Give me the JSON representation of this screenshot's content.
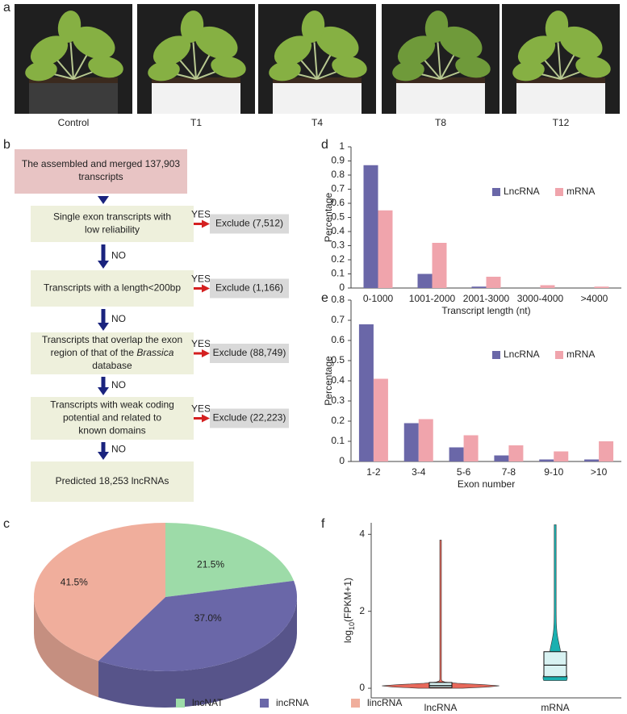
{
  "panel_labels": [
    "a",
    "b",
    "c",
    "d",
    "e",
    "f"
  ],
  "photos": {
    "labels": [
      "Control",
      "T1",
      "T4",
      "T8",
      "T12"
    ]
  },
  "flowchart": {
    "start": {
      "lines": [
        [
          "The assembled and merged 137,903"
        ],
        [
          "transcripts"
        ]
      ]
    },
    "steps": [
      {
        "lines": [
          [
            "Single exon transcripts with"
          ],
          [
            "low reliability"
          ]
        ],
        "exclude": "Exclude (7,512)"
      },
      {
        "lines": [
          [
            "Transcripts with a length<200bp"
          ]
        ],
        "exclude": "Exclude (1,166)"
      },
      {
        "lines": [
          [
            "Transcripts that overlap the exon"
          ],
          [
            "region of that of the ",
            {
              "text": "Brassica",
              "italic": true
            }
          ],
          [
            "database"
          ]
        ],
        "exclude": "Exclude (88,749)"
      },
      {
        "lines": [
          [
            "Transcripts with weak coding"
          ],
          [
            "potential and related to"
          ],
          [
            "known domains"
          ]
        ],
        "exclude": "Exclude (22,223)"
      }
    ],
    "yes": "YES",
    "no": "NO",
    "end": {
      "lines": [
        [
          "Predicted 18,253 lncRNAs"
        ]
      ]
    }
  },
  "chart_data": [
    {
      "type": "pie",
      "categories": [
        "lncNAT",
        "incRNA",
        "lincRNA"
      ],
      "values": [
        21.5,
        37.0,
        41.5
      ],
      "value_labels": [
        "21.5%",
        "37.0%",
        "41.5%"
      ],
      "colors": [
        "#9ddba8",
        "#6a67a8",
        "#f0ae9c"
      ],
      "legend": "bottom"
    },
    {
      "type": "bar",
      "categories": [
        "0-1000",
        "1001-2000",
        "2001-3000",
        "3000-4000",
        ">4000"
      ],
      "series": [
        {
          "name": "LncRNA",
          "color": "#6a67a8",
          "values": [
            0.87,
            0.1,
            0.01,
            0.0,
            0.0
          ]
        },
        {
          "name": "mRNA",
          "color": "#f0a4ac",
          "values": [
            0.55,
            0.32,
            0.08,
            0.02,
            0.01
          ]
        }
      ],
      "xlabel": "Transcript length (nt)",
      "ylabel": "Percentage",
      "ylim": [
        0,
        1
      ],
      "yticks": [
        0,
        0.1,
        0.2,
        0.3,
        0.4,
        0.5,
        0.6,
        0.7,
        0.8,
        0.9,
        1
      ],
      "grid": false,
      "legend": "upper right"
    },
    {
      "type": "bar",
      "categories": [
        "1-2",
        "3-4",
        "5-6",
        "7-8",
        "9-10",
        ">10"
      ],
      "series": [
        {
          "name": "LncRNA",
          "color": "#6a67a8",
          "values": [
            0.68,
            0.19,
            0.07,
            0.03,
            0.01,
            0.01
          ]
        },
        {
          "name": "mRNA",
          "color": "#f0a4ac",
          "values": [
            0.41,
            0.21,
            0.13,
            0.08,
            0.05,
            0.1
          ]
        }
      ],
      "xlabel": "Exon number",
      "ylabel": "Percentage",
      "ylim": [
        0,
        0.8
      ],
      "yticks": [
        0,
        0.1,
        0.2,
        0.3,
        0.4,
        0.5,
        0.6,
        0.7,
        0.8
      ],
      "grid": false,
      "legend": "upper right"
    },
    {
      "type": "violin",
      "categories": [
        "lncRNA",
        "mRNA"
      ],
      "colors": [
        "#e8685a",
        "#1ab0b0"
      ],
      "stats": [
        {
          "min": 0,
          "q1": 0.02,
          "median": 0.07,
          "q3": 0.15,
          "max": 3.85
        },
        {
          "min": 0.2,
          "q1": 0.3,
          "median": 0.6,
          "q3": 0.95,
          "max": 4.25
        }
      ],
      "ylabel": [
        "log",
        {
          "text": "10",
          "subscript": true
        },
        "(FPKM+1)"
      ],
      "ylim": [
        -0.25,
        4.3
      ],
      "yticks": [
        0,
        2,
        4
      ]
    }
  ]
}
